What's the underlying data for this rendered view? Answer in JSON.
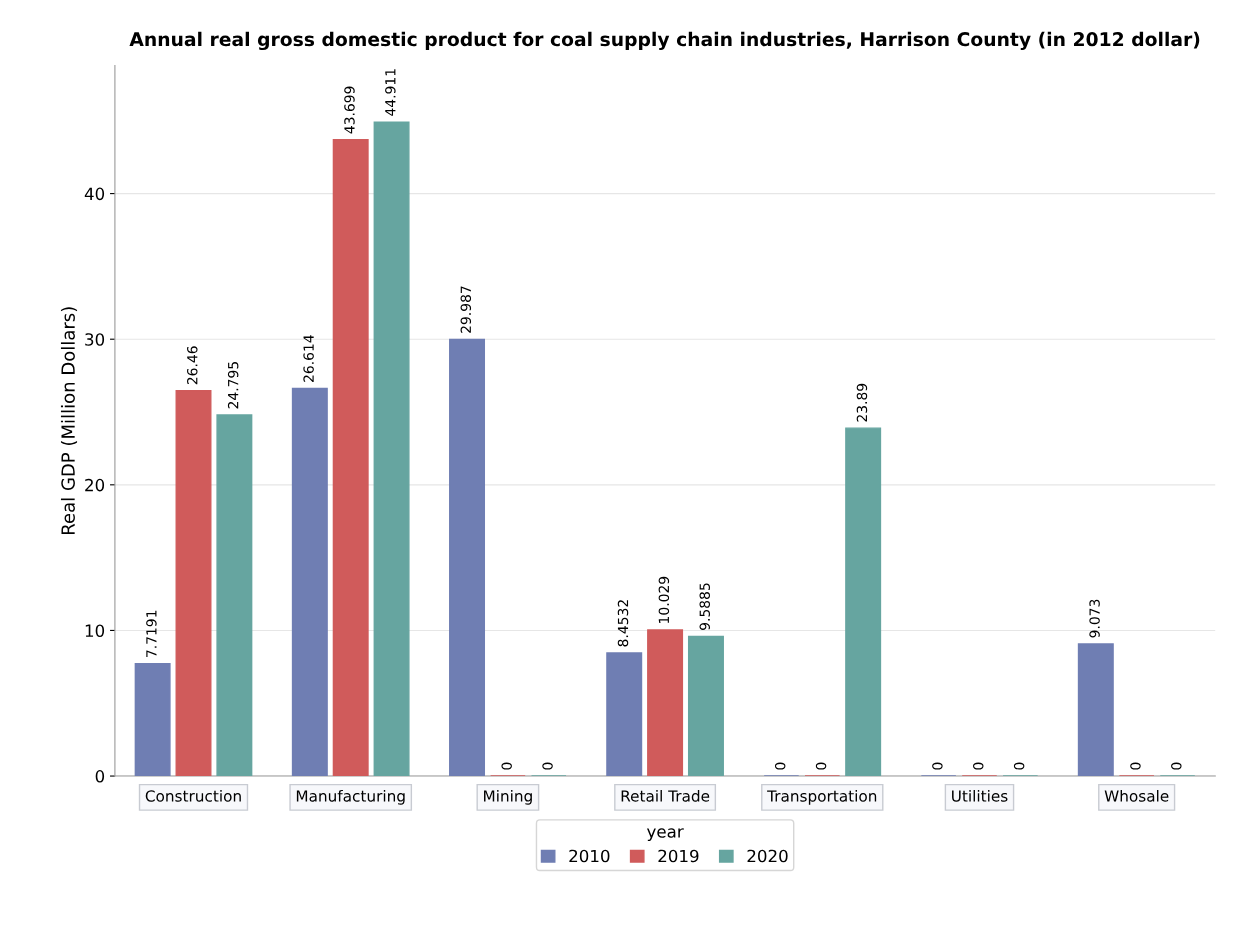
{
  "chart_data": {
    "type": "bar",
    "title": "Annual real gross domestic product for coal supply chain industries, Harrison County (in 2012 dollar)",
    "ylabel": "Real GDP (Million Dollars)",
    "legend_title": "year",
    "categories": [
      "Construction",
      "Manufacturing",
      "Mining",
      "Retail Trade",
      "Transportation",
      "Utilities",
      "Whosale"
    ],
    "series": [
      {
        "name": "2010",
        "color": "#6f7eb3",
        "values": [
          7.7191,
          26.614,
          29.987,
          8.4532,
          0,
          0,
          9.073
        ]
      },
      {
        "name": "2019",
        "color": "#d05b5b",
        "values": [
          26.46,
          43.699,
          0,
          10.029,
          0,
          0,
          0
        ]
      },
      {
        "name": "2020",
        "color": "#66a5a0",
        "values": [
          24.795,
          44.911,
          0,
          9.5885,
          23.89,
          0,
          0
        ]
      }
    ],
    "ylim": [
      0,
      48.8
    ],
    "yticks": [
      0,
      10,
      20,
      30,
      40
    ],
    "grid": "y",
    "legend": "bottom",
    "data_labels": true
  }
}
